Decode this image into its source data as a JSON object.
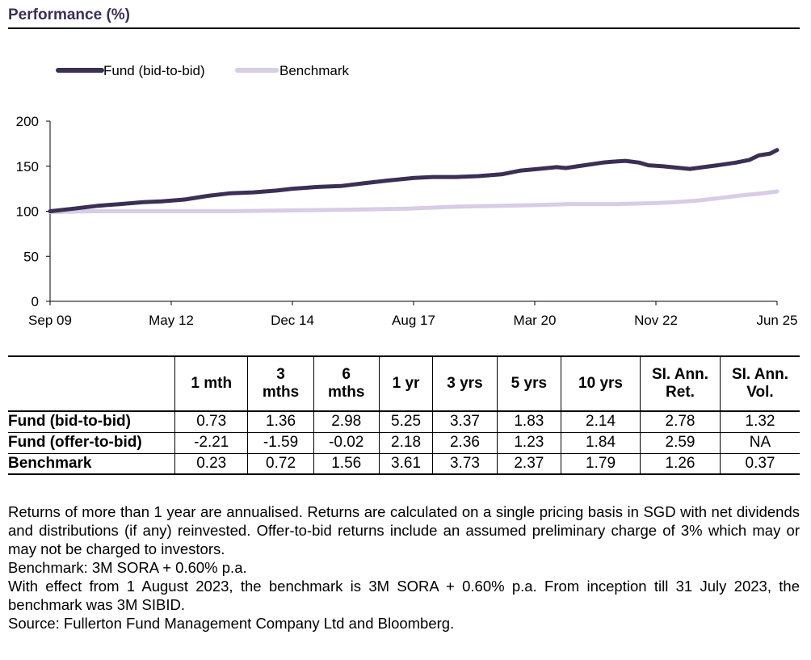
{
  "section": {
    "title": "Performance (%)"
  },
  "chart_data": {
    "type": "line",
    "title": "",
    "xlabel": "",
    "ylabel": "",
    "ylim": [
      0,
      200
    ],
    "yticks": [
      0,
      50,
      100,
      150,
      200
    ],
    "x_tick_labels": [
      "Sep 09",
      "May 12",
      "Dec 14",
      "Aug 17",
      "Mar 20",
      "Nov 22",
      "Jun 25"
    ],
    "x_range": [
      2009.67,
      2025.5
    ],
    "legend": "top-left",
    "grid": false,
    "series": [
      {
        "name": "Fund (bid-to-bid)",
        "color": "#3b2f55",
        "points": [
          [
            2009.67,
            100
          ],
          [
            2010.2,
            103
          ],
          [
            2010.7,
            106
          ],
          [
            2011.2,
            108
          ],
          [
            2011.7,
            110
          ],
          [
            2012.1,
            111
          ],
          [
            2012.6,
            113
          ],
          [
            2013.1,
            117
          ],
          [
            2013.6,
            120
          ],
          [
            2014.1,
            121
          ],
          [
            2014.6,
            123
          ],
          [
            2014.95,
            125
          ],
          [
            2015.5,
            127
          ],
          [
            2016.0,
            128
          ],
          [
            2016.5,
            131
          ],
          [
            2017.0,
            134
          ],
          [
            2017.6,
            137
          ],
          [
            2018.0,
            138
          ],
          [
            2018.5,
            138
          ],
          [
            2019.0,
            139
          ],
          [
            2019.5,
            141
          ],
          [
            2019.9,
            145
          ],
          [
            2020.3,
            147
          ],
          [
            2020.7,
            149
          ],
          [
            2020.9,
            148
          ],
          [
            2021.3,
            151
          ],
          [
            2021.7,
            154
          ],
          [
            2021.9,
            155
          ],
          [
            2022.2,
            156
          ],
          [
            2022.5,
            154
          ],
          [
            2022.7,
            151
          ],
          [
            2023.0,
            150
          ],
          [
            2023.4,
            148
          ],
          [
            2023.6,
            147
          ],
          [
            2023.9,
            149
          ],
          [
            2024.2,
            151
          ],
          [
            2024.6,
            154
          ],
          [
            2024.9,
            157
          ],
          [
            2025.1,
            162
          ],
          [
            2025.35,
            164
          ],
          [
            2025.5,
            168
          ]
        ]
      },
      {
        "name": "Benchmark",
        "color": "#d8cce6",
        "points": [
          [
            2009.67,
            99
          ],
          [
            2010.5,
            100
          ],
          [
            2012.0,
            100
          ],
          [
            2013.5,
            100
          ],
          [
            2015.0,
            101
          ],
          [
            2016.5,
            102
          ],
          [
            2017.5,
            103
          ],
          [
            2018.5,
            105
          ],
          [
            2019.5,
            106
          ],
          [
            2020.3,
            107
          ],
          [
            2021.0,
            108
          ],
          [
            2022.0,
            108
          ],
          [
            2022.8,
            109
          ],
          [
            2023.3,
            110
          ],
          [
            2023.8,
            112
          ],
          [
            2024.3,
            115
          ],
          [
            2024.8,
            118
          ],
          [
            2025.2,
            120
          ],
          [
            2025.5,
            122
          ]
        ]
      }
    ]
  },
  "table": {
    "headers": [
      [
        "",
        ""
      ],
      [
        "1 mth",
        ""
      ],
      [
        "3",
        "mths"
      ],
      [
        "6",
        "mths"
      ],
      [
        "1 yr",
        ""
      ],
      [
        "3 yrs",
        ""
      ],
      [
        "5 yrs",
        ""
      ],
      [
        "10 yrs",
        ""
      ],
      [
        "SI. Ann.",
        "Ret."
      ],
      [
        "SI. Ann.",
        "Vol."
      ]
    ],
    "rows": [
      {
        "label": "Fund (bid-to-bid)",
        "values": [
          "0.73",
          "1.36",
          "2.98",
          "5.25",
          "3.37",
          "1.83",
          "2.14",
          "2.78",
          "1.32"
        ]
      },
      {
        "label": "Fund (offer-to-bid)",
        "values": [
          "-2.21",
          "-1.59",
          "-0.02",
          "2.18",
          "2.36",
          "1.23",
          "1.84",
          "2.59",
          "NA"
        ]
      },
      {
        "label": "Benchmark",
        "values": [
          "0.23",
          "0.72",
          "1.56",
          "3.61",
          "3.73",
          "2.37",
          "1.79",
          "1.26",
          "0.37"
        ]
      }
    ]
  },
  "notes": {
    "returns": "Returns of more than 1 year are annualised. Returns are calculated on a single pricing basis in SGD with net dividends and distributions (if any) reinvested. Offer-to-bid returns include an assumed preliminary charge of 3% which may or may not be charged to investors.",
    "benchmark": "Benchmark: 3M SORA + 0.60% p.a.",
    "effect": "With effect from 1 August 2023, the benchmark is 3M SORA + 0.60% p.a. From inception till 31 July 2023, the benchmark was 3M SIBID.",
    "source": "Source: Fullerton Fund Management Company Ltd and Bloomberg."
  }
}
